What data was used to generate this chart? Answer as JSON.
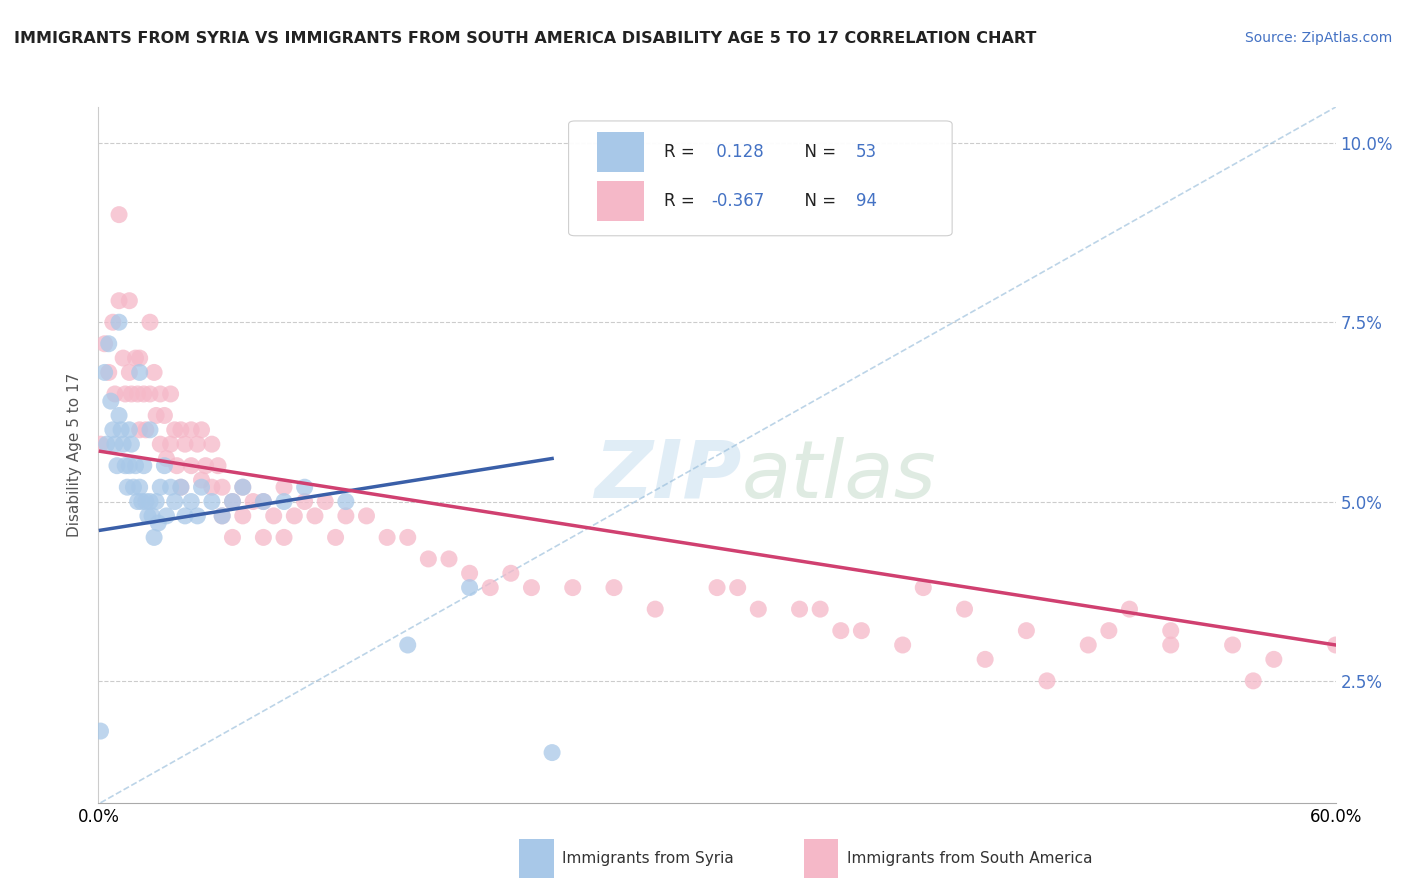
{
  "title": "IMMIGRANTS FROM SYRIA VS IMMIGRANTS FROM SOUTH AMERICA DISABILITY AGE 5 TO 17 CORRELATION CHART",
  "source": "Source: ZipAtlas.com",
  "ylabel": "Disability Age 5 to 17",
  "xlim": [
    0,
    0.6
  ],
  "ylim": [
    0.008,
    0.105
  ],
  "yticks": [
    0.025,
    0.05,
    0.075,
    0.1
  ],
  "ytick_labels": [
    "2.5%",
    "5.0%",
    "7.5%",
    "10.0%"
  ],
  "r_syria": 0.128,
  "n_syria": 53,
  "r_south_america": -0.367,
  "n_south_america": 94,
  "syria_color": "#a8c8e8",
  "south_america_color": "#f5b8c8",
  "syria_line_color": "#3a5fa8",
  "south_america_line_color": "#d04070",
  "legend_syria": "Immigrants from Syria",
  "legend_south_america": "Immigrants from South America",
  "background_color": "#ffffff",
  "title_color": "#222222",
  "source_color": "#4472c4",
  "watermark_color": "#c8dff0",
  "syria_x": [
    0.001,
    0.003,
    0.004,
    0.005,
    0.006,
    0.007,
    0.008,
    0.009,
    0.01,
    0.01,
    0.011,
    0.012,
    0.013,
    0.014,
    0.015,
    0.015,
    0.016,
    0.017,
    0.018,
    0.019,
    0.02,
    0.02,
    0.021,
    0.022,
    0.023,
    0.024,
    0.025,
    0.025,
    0.026,
    0.027,
    0.028,
    0.029,
    0.03,
    0.032,
    0.033,
    0.035,
    0.037,
    0.04,
    0.042,
    0.045,
    0.048,
    0.05,
    0.055,
    0.06,
    0.065,
    0.07,
    0.08,
    0.09,
    0.1,
    0.12,
    0.15,
    0.18,
    0.22
  ],
  "syria_y": [
    0.018,
    0.068,
    0.058,
    0.072,
    0.064,
    0.06,
    0.058,
    0.055,
    0.075,
    0.062,
    0.06,
    0.058,
    0.055,
    0.052,
    0.06,
    0.055,
    0.058,
    0.052,
    0.055,
    0.05,
    0.068,
    0.052,
    0.05,
    0.055,
    0.05,
    0.048,
    0.06,
    0.05,
    0.048,
    0.045,
    0.05,
    0.047,
    0.052,
    0.055,
    0.048,
    0.052,
    0.05,
    0.052,
    0.048,
    0.05,
    0.048,
    0.052,
    0.05,
    0.048,
    0.05,
    0.052,
    0.05,
    0.05,
    0.052,
    0.05,
    0.03,
    0.038,
    0.015
  ],
  "south_america_x": [
    0.001,
    0.003,
    0.005,
    0.007,
    0.008,
    0.01,
    0.01,
    0.012,
    0.013,
    0.015,
    0.015,
    0.016,
    0.018,
    0.019,
    0.02,
    0.02,
    0.022,
    0.023,
    0.025,
    0.025,
    0.027,
    0.028,
    0.03,
    0.03,
    0.032,
    0.033,
    0.035,
    0.035,
    0.037,
    0.038,
    0.04,
    0.04,
    0.042,
    0.045,
    0.045,
    0.048,
    0.05,
    0.05,
    0.052,
    0.055,
    0.055,
    0.058,
    0.06,
    0.06,
    0.065,
    0.065,
    0.07,
    0.07,
    0.075,
    0.08,
    0.08,
    0.085,
    0.09,
    0.09,
    0.095,
    0.1,
    0.105,
    0.11,
    0.115,
    0.12,
    0.13,
    0.14,
    0.15,
    0.16,
    0.17,
    0.18,
    0.19,
    0.2,
    0.21,
    0.23,
    0.25,
    0.27,
    0.3,
    0.32,
    0.35,
    0.37,
    0.4,
    0.42,
    0.45,
    0.48,
    0.5,
    0.52,
    0.55,
    0.57,
    0.31,
    0.34,
    0.36,
    0.39,
    0.43,
    0.46,
    0.49,
    0.52,
    0.56,
    0.6
  ],
  "south_america_y": [
    0.058,
    0.072,
    0.068,
    0.075,
    0.065,
    0.09,
    0.078,
    0.07,
    0.065,
    0.078,
    0.068,
    0.065,
    0.07,
    0.065,
    0.07,
    0.06,
    0.065,
    0.06,
    0.075,
    0.065,
    0.068,
    0.062,
    0.065,
    0.058,
    0.062,
    0.056,
    0.065,
    0.058,
    0.06,
    0.055,
    0.06,
    0.052,
    0.058,
    0.06,
    0.055,
    0.058,
    0.06,
    0.053,
    0.055,
    0.058,
    0.052,
    0.055,
    0.052,
    0.048,
    0.05,
    0.045,
    0.052,
    0.048,
    0.05,
    0.05,
    0.045,
    0.048,
    0.052,
    0.045,
    0.048,
    0.05,
    0.048,
    0.05,
    0.045,
    0.048,
    0.048,
    0.045,
    0.045,
    0.042,
    0.042,
    0.04,
    0.038,
    0.04,
    0.038,
    0.038,
    0.038,
    0.035,
    0.038,
    0.035,
    0.035,
    0.032,
    0.038,
    0.035,
    0.032,
    0.03,
    0.035,
    0.032,
    0.03,
    0.028,
    0.038,
    0.035,
    0.032,
    0.03,
    0.028,
    0.025,
    0.032,
    0.03,
    0.025,
    0.03
  ],
  "syria_trend_x": [
    0.001,
    0.22
  ],
  "syria_trend_y": [
    0.046,
    0.056
  ],
  "south_trend_x": [
    0.001,
    0.6
  ],
  "south_trend_y": [
    0.057,
    0.03
  ],
  "ref_line_x": [
    0.001,
    0.6
  ],
  "ref_line_y": [
    0.008,
    0.105
  ]
}
